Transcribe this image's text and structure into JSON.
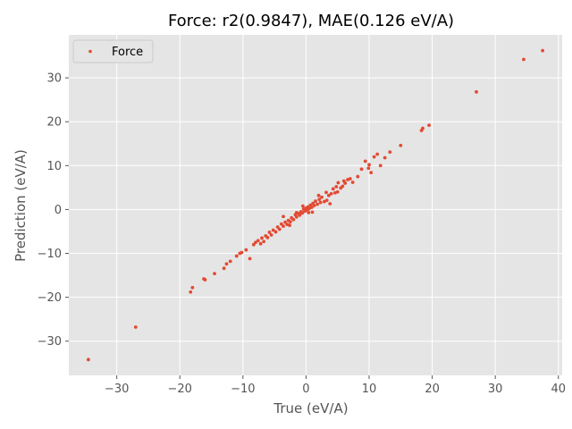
{
  "chart_data": {
    "type": "scatter",
    "title": "Force: r2(0.9847), MAE(0.126 eV/A)",
    "xlabel": "True (eV/A)",
    "ylabel": "Prediction (eV/A)",
    "xlim": [
      -37.6,
      40.6
    ],
    "ylim": [
      -37.8,
      39.8
    ],
    "xticks": [
      -30,
      -20,
      -10,
      0,
      10,
      20,
      30,
      40
    ],
    "yticks": [
      -30,
      -20,
      -10,
      0,
      10,
      20,
      30
    ],
    "xtick_labels": [
      "−30",
      "−20",
      "−10",
      "0",
      "10",
      "20",
      "30",
      "40"
    ],
    "ytick_labels": [
      "−30",
      "−20",
      "−10",
      "0",
      "10",
      "20",
      "30"
    ],
    "grid": true,
    "legend_position": "top-left",
    "colors": {
      "series": "#e24a33",
      "background": "#e5e5e5",
      "grid": "#ffffff"
    },
    "series": [
      {
        "name": "Force",
        "points": [
          [
            -34.5,
            -34.2
          ],
          [
            -27.0,
            -26.8
          ],
          [
            34.5,
            34.2
          ],
          [
            37.5,
            36.2
          ],
          [
            27.0,
            26.8
          ],
          [
            19.5,
            19.2
          ],
          [
            18.3,
            18.0
          ],
          [
            18.5,
            18.5
          ],
          [
            15.0,
            14.6
          ],
          [
            13.3,
            13.1
          ],
          [
            12.5,
            11.8
          ],
          [
            11.3,
            12.6
          ],
          [
            10.8,
            12.0
          ],
          [
            11.8,
            10.0
          ],
          [
            10.3,
            8.4
          ],
          [
            9.9,
            9.4
          ],
          [
            10.0,
            10.2
          ],
          [
            9.4,
            11.0
          ],
          [
            8.8,
            9.2
          ],
          [
            8.2,
            7.5
          ],
          [
            7.4,
            6.2
          ],
          [
            7.0,
            7.0
          ],
          [
            6.6,
            6.8
          ],
          [
            6.2,
            6.0
          ],
          [
            5.8,
            5.3
          ],
          [
            5.5,
            4.9
          ],
          [
            5.1,
            6.1
          ],
          [
            4.8,
            5.2
          ],
          [
            4.6,
            3.8
          ],
          [
            4.3,
            4.7
          ],
          [
            4.0,
            3.6
          ],
          [
            3.6,
            3.2
          ],
          [
            3.2,
            3.9
          ],
          [
            3.3,
            2.1
          ],
          [
            2.9,
            1.8
          ],
          [
            2.5,
            2.8
          ],
          [
            2.3,
            1.6
          ],
          [
            2.1,
            2.3
          ],
          [
            1.8,
            1.2
          ],
          [
            1.5,
            1.9
          ],
          [
            1.3,
            0.9
          ],
          [
            1.1,
            1.4
          ],
          [
            0.9,
            0.5
          ],
          [
            0.7,
            1.0
          ],
          [
            0.5,
            0.2
          ],
          [
            0.3,
            0.6
          ],
          [
            0.2,
            -0.1
          ],
          [
            0.0,
            0.3
          ],
          [
            -0.2,
            -0.4
          ],
          [
            -0.4,
            0.1
          ],
          [
            -0.6,
            -0.8
          ],
          [
            -0.8,
            -0.5
          ],
          [
            -1.0,
            -1.3
          ],
          [
            -1.2,
            -0.9
          ],
          [
            -1.5,
            -1.7
          ],
          [
            -1.7,
            -1.2
          ],
          [
            -2.0,
            -2.3
          ],
          [
            -2.3,
            -1.9
          ],
          [
            -2.5,
            -2.8
          ],
          [
            -2.8,
            -2.5
          ],
          [
            -3.0,
            -3.4
          ],
          [
            -3.3,
            -2.9
          ],
          [
            -3.6,
            -3.8
          ],
          [
            -3.9,
            -3.3
          ],
          [
            -4.2,
            -4.5
          ],
          [
            -4.5,
            -4.0
          ],
          [
            -4.8,
            -5.1
          ],
          [
            -5.2,
            -4.7
          ],
          [
            -5.5,
            -5.8
          ],
          [
            -5.8,
            -5.2
          ],
          [
            -6.1,
            -6.4
          ],
          [
            -6.4,
            -6.0
          ],
          [
            -6.7,
            -7.3
          ],
          [
            -7.0,
            -6.5
          ],
          [
            -7.2,
            -7.8
          ],
          [
            -7.6,
            -7.1
          ],
          [
            -8.0,
            -7.5
          ],
          [
            -8.3,
            -8.0
          ],
          [
            -8.9,
            -11.2
          ],
          [
            -9.5,
            -9.2
          ],
          [
            -10.2,
            -9.8
          ],
          [
            -10.5,
            -10.0
          ],
          [
            -11.0,
            -10.6
          ],
          [
            -12.0,
            -11.8
          ],
          [
            -12.6,
            -12.4
          ],
          [
            -13.0,
            -13.4
          ],
          [
            -14.5,
            -14.6
          ],
          [
            -16.0,
            -16.0
          ],
          [
            -16.2,
            -15.8
          ],
          [
            -18.0,
            -17.8
          ],
          [
            -18.3,
            -18.8
          ],
          [
            3.8,
            1.3
          ],
          [
            1.0,
            -0.6
          ],
          [
            -1.5,
            -0.7
          ],
          [
            -3.6,
            -1.6
          ],
          [
            5.0,
            4.0
          ],
          [
            2.0,
            3.2
          ],
          [
            -0.5,
            0.8
          ],
          [
            0.4,
            -0.7
          ],
          [
            -2.6,
            -3.6
          ],
          [
            6.0,
            6.5
          ]
        ]
      }
    ]
  }
}
